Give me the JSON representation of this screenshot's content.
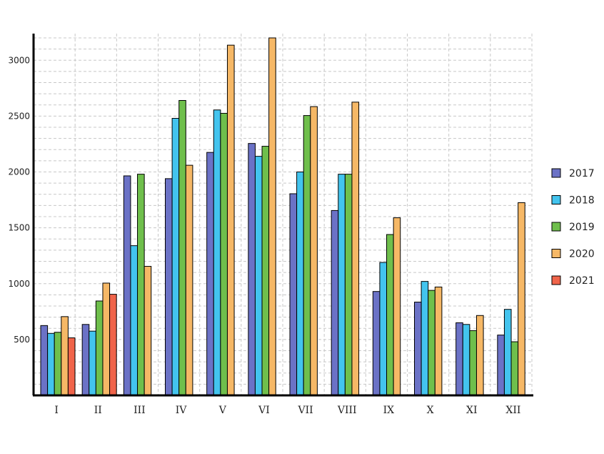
{
  "chart_data": {
    "type": "bar",
    "categories": [
      "I",
      "II",
      "III",
      "IV",
      "V",
      "VI",
      "VII",
      "VIII",
      "IX",
      "X",
      "XI",
      "XII"
    ],
    "series": [
      {
        "name": "2017",
        "color": "#6b72c6",
        "values": [
          625,
          635,
          1965,
          1940,
          2175,
          2255,
          1805,
          1655,
          930,
          835,
          650,
          540
        ]
      },
      {
        "name": "2018",
        "color": "#43c4ee",
        "values": [
          555,
          575,
          1340,
          2480,
          2555,
          2140,
          2000,
          1980,
          1190,
          1020,
          635,
          770
        ]
      },
      {
        "name": "2019",
        "color": "#6fbf4c",
        "values": [
          565,
          845,
          1980,
          2640,
          2525,
          2230,
          2505,
          1980,
          1440,
          940,
          580,
          480
        ]
      },
      {
        "name": "2020",
        "color": "#f6b866",
        "values": [
          705,
          1005,
          1155,
          2060,
          3135,
          3200,
          2585,
          2625,
          1590,
          970,
          715,
          1725
        ]
      },
      {
        "name": "2021",
        "color": "#f0644a",
        "values": [
          515,
          905,
          null,
          null,
          null,
          null,
          null,
          null,
          null,
          null,
          null,
          null
        ]
      }
    ],
    "yticks": [
      500,
      1000,
      1500,
      2000,
      2500,
      3000
    ],
    "ylim": [
      0,
      3200
    ],
    "grid": true,
    "legend_position": "right"
  }
}
